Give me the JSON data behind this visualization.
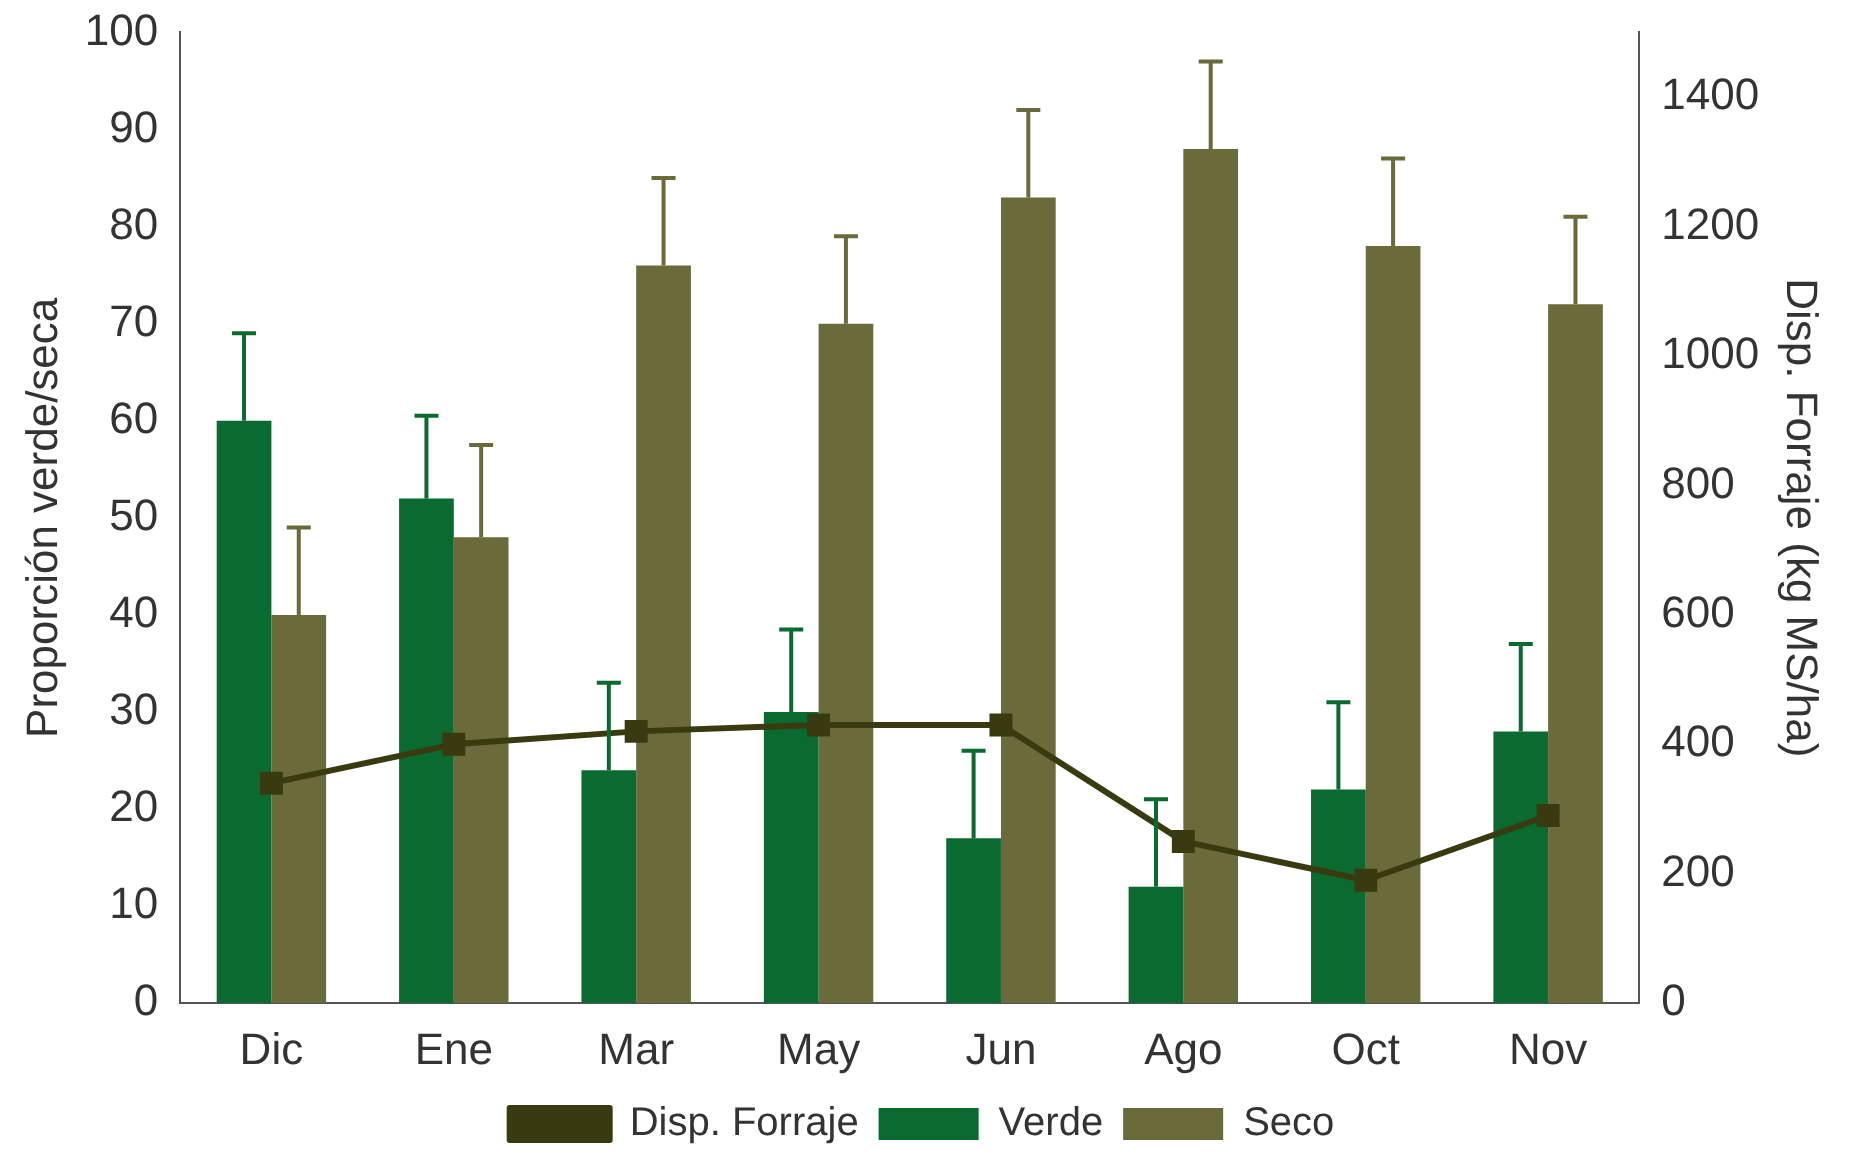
{
  "chart_data": {
    "type": "bar",
    "ylabel": "Proporción verde/seca",
    "y2label": "Disp. Forraje (kg MS/ha)",
    "categories": [
      "Dic",
      "Ene",
      "Mar",
      "May",
      "Jun",
      "Ago",
      "Oct",
      "Nov"
    ],
    "series": [
      {
        "name": "Verde",
        "color": "#0b6a30",
        "values": [
          60,
          52,
          24,
          30,
          17,
          12,
          22,
          28
        ],
        "errors": [
          [
            60,
            69
          ],
          [
            52,
            60.5
          ],
          [
            24,
            33
          ],
          [
            30,
            38.5
          ],
          [
            17,
            26
          ],
          [
            12,
            21
          ],
          [
            22,
            31
          ],
          [
            28,
            37
          ]
        ]
      },
      {
        "name": "Seco",
        "color": "#6b6a3a",
        "values": [
          40,
          48,
          76,
          70,
          83,
          88,
          78,
          72
        ],
        "errors": [
          [
            40,
            49
          ],
          [
            48,
            57.5
          ],
          [
            76,
            85
          ],
          [
            70,
            79
          ],
          [
            83,
            92
          ],
          [
            88,
            97
          ],
          [
            78,
            87
          ],
          [
            72,
            81
          ]
        ]
      },
      {
        "name": "Disp. Forraje",
        "type": "line",
        "axis": "y2",
        "color": "#3a3a10",
        "marker": "square",
        "values": [
          340,
          400,
          420,
          430,
          430,
          250,
          190,
          290
        ]
      }
    ],
    "ylim": [
      0,
      100
    ],
    "yticks": [
      0,
      10,
      20,
      30,
      40,
      50,
      60,
      70,
      80,
      90,
      100
    ],
    "y2lim": [
      0,
      1500
    ],
    "y2ticks": [
      0,
      200,
      400,
      600,
      800,
      1000,
      1200,
      1400
    ],
    "grid": false,
    "legend": "bottom"
  }
}
